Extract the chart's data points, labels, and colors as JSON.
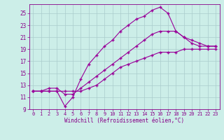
{
  "xlabel": "Windchill (Refroidissement éolien,°C)",
  "bg_color": "#cceee8",
  "grid_color": "#aacccc",
  "line_color": "#990099",
  "tick_color": "#880088",
  "xlim_min": -0.5,
  "xlim_max": 23.5,
  "ylim_min": 9,
  "ylim_max": 26.5,
  "yticks": [
    9,
    11,
    13,
    15,
    17,
    19,
    21,
    23,
    25
  ],
  "xticks": [
    0,
    1,
    2,
    3,
    4,
    5,
    6,
    7,
    8,
    9,
    10,
    11,
    12,
    13,
    14,
    15,
    16,
    17,
    18,
    19,
    20,
    21,
    22,
    23
  ],
  "s1x": [
    0,
    1,
    2,
    3,
    4,
    5,
    6,
    7,
    8,
    9,
    10,
    11,
    12,
    13,
    14,
    15,
    16,
    17,
    18,
    19,
    20,
    21,
    22,
    23
  ],
  "s1y": [
    12,
    12,
    12,
    12,
    9.5,
    11.0,
    14.0,
    16.5,
    18.0,
    19.5,
    20.5,
    22.0,
    23.0,
    24.0,
    24.5,
    25.5,
    26.0,
    25.0,
    22.0,
    21.0,
    20.0,
    19.5,
    19.5,
    19.5
  ],
  "s2x": [
    0,
    1,
    2,
    3,
    4,
    5,
    6,
    7,
    8,
    9,
    10,
    11,
    12,
    13,
    14,
    15,
    16,
    17,
    18,
    19,
    20,
    21,
    22,
    23
  ],
  "s2y": [
    12,
    12,
    12.5,
    12.5,
    11.5,
    11.5,
    12.5,
    13.5,
    14.5,
    15.5,
    16.5,
    17.5,
    18.5,
    19.5,
    20.5,
    21.5,
    22.0,
    22.0,
    22.0,
    21.0,
    20.5,
    20.0,
    19.5,
    19.5
  ],
  "s3x": [
    0,
    1,
    2,
    3,
    4,
    5,
    6,
    7,
    8,
    9,
    10,
    11,
    12,
    13,
    14,
    15,
    16,
    17,
    18,
    19,
    20,
    21,
    22,
    23
  ],
  "s3y": [
    12,
    12,
    12,
    12,
    12,
    12,
    12,
    12.5,
    13.0,
    14.0,
    15.0,
    16.0,
    16.5,
    17.0,
    17.5,
    18.0,
    18.5,
    18.5,
    18.5,
    19.0,
    19.0,
    19.0,
    19.0,
    19.0
  ]
}
